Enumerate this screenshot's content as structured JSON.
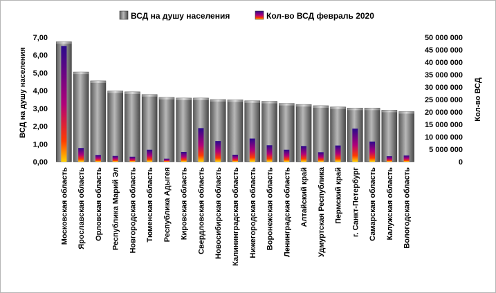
{
  "chart_data": {
    "type": "bar",
    "categories": [
      "Московская область",
      "Ярославская область",
      "Орловская область",
      "Республика Марий Эл",
      "Новгородская область",
      "Тюменская область",
      "Республика Адыгея",
      "Кировская область",
      "Свердловская область",
      "Новосибирская область",
      "Калининградская область",
      "Нижегородская область",
      "Воронежская область",
      "Ленинградская область",
      "Алтайский край",
      "Удмуртская Республика",
      "Пермский край",
      "г. Санкт-Петербург",
      "Самарская область",
      "Калужская область",
      "Вологодская область"
    ],
    "series": [
      {
        "name": "ВСД на душу населения",
        "axis": "left",
        "color": "#7f7f7f",
        "values": [
          6.75,
          5.05,
          4.55,
          3.98,
          3.93,
          3.78,
          3.62,
          3.58,
          3.58,
          3.5,
          3.48,
          3.43,
          3.4,
          3.28,
          3.22,
          3.15,
          3.08,
          3.02,
          3.02,
          2.9,
          2.82
        ]
      },
      {
        "name": "Кол-во ВСД февраль 2020",
        "axis": "right",
        "color": "#5a1aa0",
        "values": [
          46500000,
          5500000,
          2700000,
          2300000,
          2000000,
          4800000,
          1200000,
          3900000,
          13500000,
          8300000,
          2800000,
          9300000,
          6600000,
          4800000,
          6300000,
          3800000,
          6500000,
          13300000,
          8100000,
          2200000,
          2500000
        ]
      }
    ],
    "ylabel": "ВСД на душу населения",
    "ylabel_right": "Кол-во ВСД",
    "ylim": [
      0,
      7
    ],
    "ylim_right": [
      0,
      50000000
    ],
    "yticks": [
      "0,00",
      "1,00",
      "2,00",
      "3,00",
      "4,00",
      "5,00",
      "6,00",
      "7,00"
    ],
    "yticks_right": [
      "0",
      "5 000 000",
      "10 000 000",
      "15 000 000",
      "20 000 000",
      "25 000 000",
      "30 000 000",
      "35 000 000",
      "40 000 000",
      "45 000 000",
      "50 000 000"
    ],
    "grid": false,
    "legend": "top-center"
  }
}
